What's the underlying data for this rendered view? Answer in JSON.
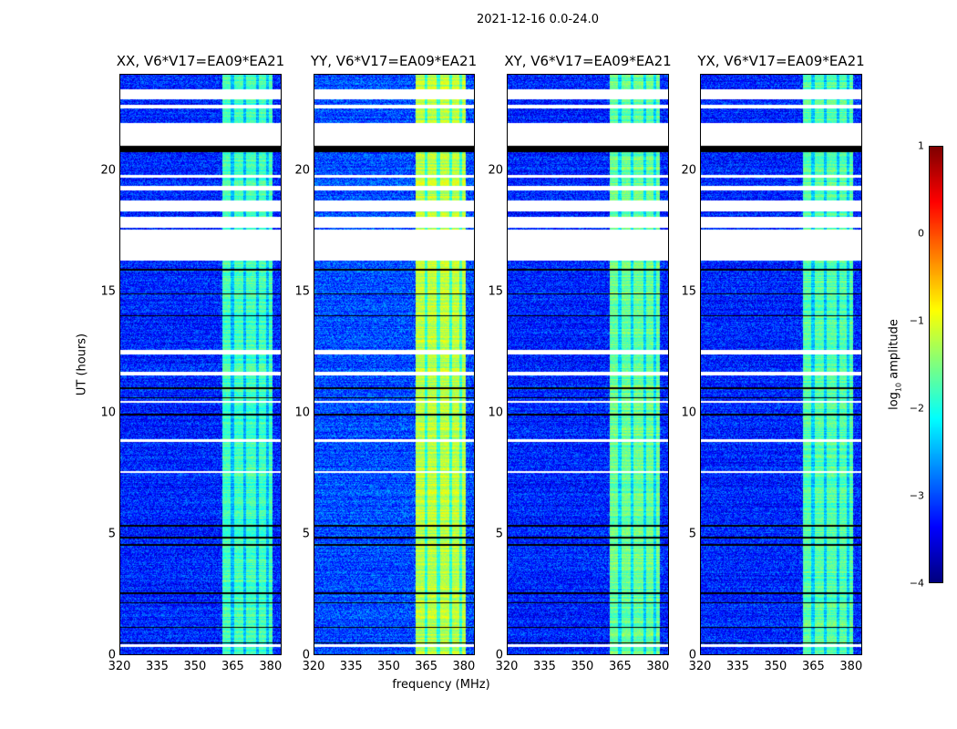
{
  "chart_data": {
    "type": "heatmap",
    "title": "2021-12-16 0.0-24.0",
    "xlabel": "frequency (MHz)",
    "ylabel": "UT (hours)",
    "xlim": [
      320,
      384.4
    ],
    "ylim": [
      0,
      24
    ],
    "xticks": [
      "320",
      "335",
      "350",
      "365",
      "380"
    ],
    "yticks": [
      "0",
      "5",
      "10",
      "15",
      "20"
    ],
    "colorbar": {
      "label": "log",
      "label_sub": "10",
      "label_suffix": " amplitude",
      "range": [
        -4,
        1
      ],
      "ticks": [
        "−4",
        "−3",
        "−2",
        "−1",
        "0",
        "1"
      ],
      "colormap": "jet"
    },
    "panels": [
      {
        "title": "XX, V6*V17=EA09*EA21",
        "background_level": -3.2,
        "band_level": -1.8
      },
      {
        "title": "YY, V6*V17=EA09*EA21",
        "background_level": -3.0,
        "band_level": -1.2
      },
      {
        "title": "XY, V6*V17=EA09*EA21",
        "background_level": -3.2,
        "band_level": -1.6
      },
      {
        "title": "YX, V6*V17=EA09*EA21",
        "background_level": -3.2,
        "band_level": -1.7
      }
    ],
    "band_MHz": [
      361,
      381
    ],
    "band_gaps_MHz": [
      365,
      370,
      375,
      379
    ],
    "flagged_hours_white": [
      [
        23.0,
        23.4
      ],
      [
        22.6,
        22.75
      ],
      [
        21.05,
        22.0
      ],
      [
        19.75,
        19.85
      ],
      [
        19.2,
        19.4
      ],
      [
        18.35,
        18.8
      ],
      [
        17.65,
        18.1
      ],
      [
        16.3,
        17.6
      ],
      [
        12.4,
        12.6
      ],
      [
        11.55,
        11.7
      ],
      [
        10.4,
        10.5
      ],
      [
        8.8,
        8.9
      ],
      [
        7.5,
        7.6
      ],
      [
        0.3,
        0.4
      ]
    ],
    "flagged_hours_black": [
      [
        20.8,
        21.05
      ],
      [
        15.9,
        15.95
      ],
      [
        14.9,
        14.95
      ],
      [
        14.0,
        14.05
      ],
      [
        11.0,
        11.05
      ],
      [
        10.6,
        10.65
      ],
      [
        9.9,
        9.95
      ],
      [
        5.3,
        5.35
      ],
      [
        4.8,
        4.85
      ],
      [
        4.5,
        4.55
      ],
      [
        2.5,
        2.55
      ],
      [
        2.1,
        2.15
      ],
      [
        1.1,
        1.15
      ],
      [
        0.45,
        0.5
      ]
    ]
  }
}
